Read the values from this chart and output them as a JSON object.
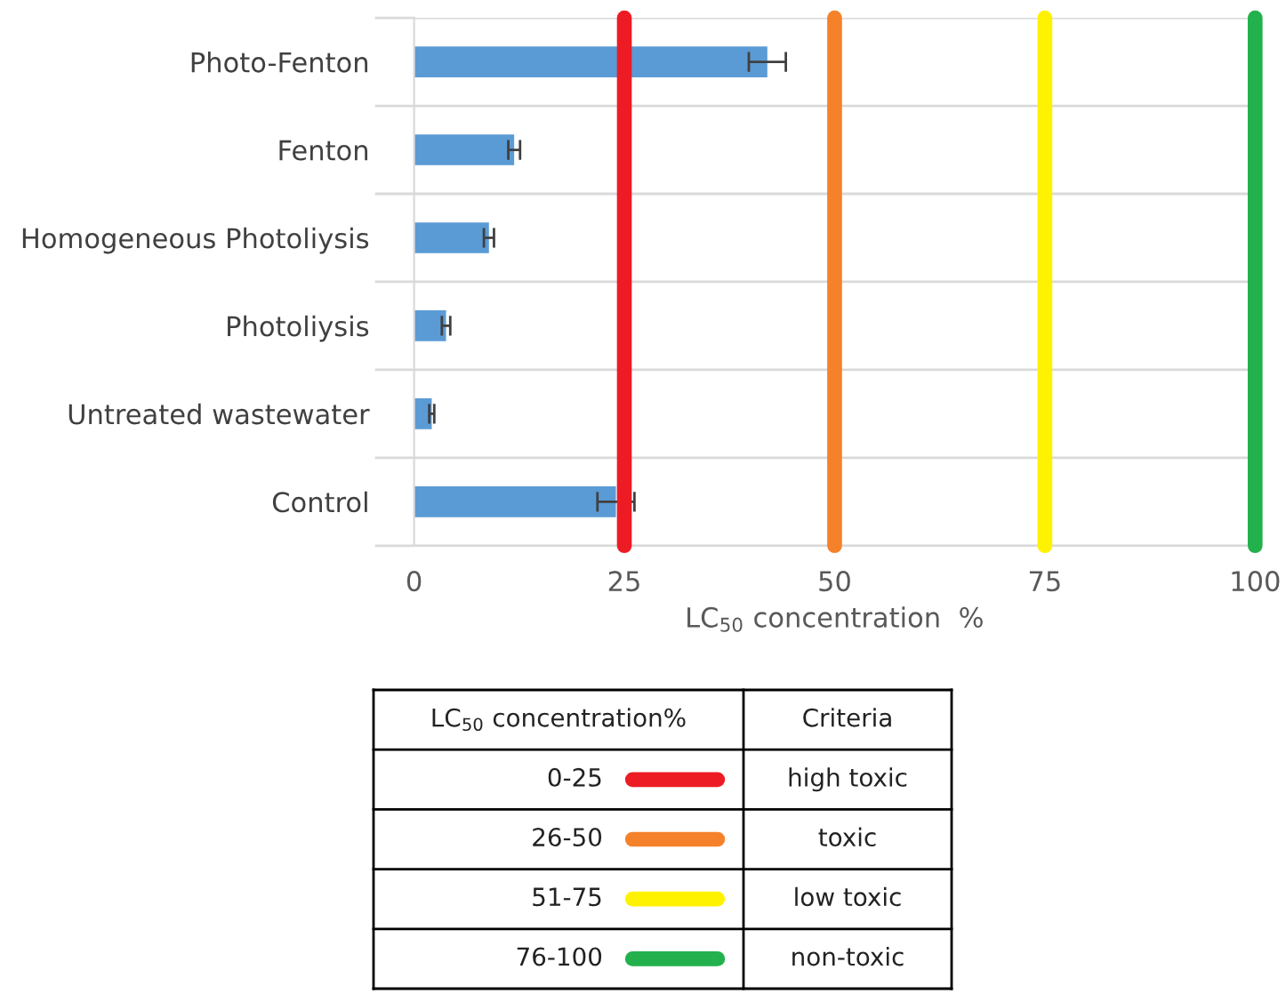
{
  "chart_data": {
    "type": "bar",
    "orientation": "horizontal",
    "categories": [
      "Photo-Fenton",
      "Fenton",
      "Homogeneous Photoliysis",
      "Photoliysis",
      "Untreated wastewater",
      "Control"
    ],
    "values": [
      42,
      11.9,
      8.9,
      3.8,
      2.1,
      24
    ],
    "errors": [
      2.2,
      0.7,
      0.6,
      0.5,
      0.3,
      2.2
    ],
    "color": "#5b9bd5",
    "xlim": [
      0,
      100
    ],
    "xticks": [
      0,
      25,
      50,
      75,
      100
    ],
    "xlabel": "LC$_{50}$ concentration  %",
    "grid": "y",
    "ref_lines": [
      {
        "axis": "x",
        "value": 25,
        "color": "#ed1c24"
      },
      {
        "axis": "x",
        "value": 50,
        "color": "#f5822a"
      },
      {
        "axis": "x",
        "value": 75,
        "color": "#fff200"
      },
      {
        "axis": "x",
        "value": 100,
        "color": "#22b14c"
      }
    ],
    "annotations": [
      "LC$_{50}$ concentration%",
      "Criteria",
      "0-25",
      "high toxic",
      "26-50",
      "toxic",
      "51-75",
      "low toxic",
      "76-100",
      "non-toxic"
    ]
  }
}
